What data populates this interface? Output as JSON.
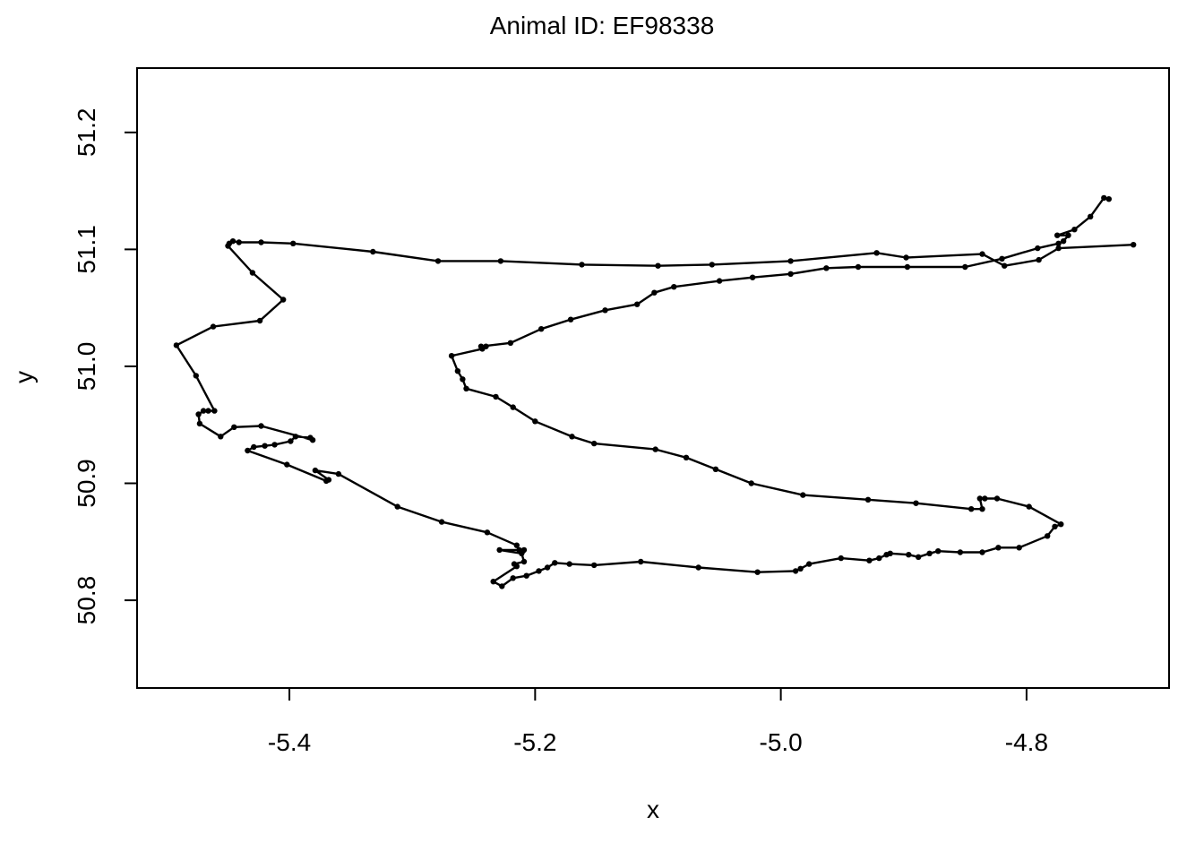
{
  "chart_data": {
    "type": "line",
    "title": "Animal ID: EF98338",
    "xlabel": "x",
    "ylabel": "y",
    "xlim": [
      -5.524,
      -4.684
    ],
    "ylim": [
      50.725,
      51.255
    ],
    "xticks": [
      -5.4,
      -5.2,
      -5.0,
      -4.8
    ],
    "xtick_labels": [
      "-5.4",
      "-5.2",
      "-5.0",
      "-4.8"
    ],
    "yticks": [
      50.8,
      50.9,
      51.0,
      51.1,
      51.2
    ],
    "ytick_labels": [
      "50.8",
      "50.9",
      "51.0",
      "51.1",
      "51.2"
    ],
    "grid": false,
    "legend": "none",
    "markers": true,
    "line_color": "#000000",
    "series": [
      {
        "x": [
          -4.713,
          -4.774,
          -4.79,
          -4.818,
          -4.836,
          -4.898,
          -4.922,
          -4.992,
          -5.056,
          -5.1,
          -5.162,
          -5.228,
          -5.279,
          -5.332,
          -5.397,
          -5.423,
          -5.441,
          -5.446,
          -5.449,
          -5.45,
          -5.43,
          -5.405,
          -5.424,
          -5.462,
          -5.492,
          -5.476,
          -5.461,
          -5.466,
          -5.47,
          -5.474,
          -5.473,
          -5.456,
          -5.445,
          -5.423,
          -5.381,
          -5.383,
          -5.395,
          -5.399,
          -5.412,
          -5.42,
          -5.429,
          -5.434,
          -5.402,
          -5.37,
          -5.368,
          -5.379,
          -5.36,
          -5.312,
          -5.276,
          -5.239,
          -5.215,
          -5.213,
          -5.21,
          -5.209,
          -5.229,
          -5.211,
          -5.209,
          -5.217,
          -5.215,
          -5.234,
          -5.227,
          -5.218,
          -5.207,
          -5.197,
          -5.19,
          -5.184,
          -5.172,
          -5.152,
          -5.114,
          -5.067,
          -5.019,
          -4.988,
          -4.984,
          -4.977,
          -4.951,
          -4.928,
          -4.92,
          -4.914,
          -4.911,
          -4.896,
          -4.888,
          -4.879,
          -4.872,
          -4.854,
          -4.836,
          -4.823,
          -4.806,
          -4.783,
          -4.777,
          -4.772,
          -4.798,
          -4.824,
          -4.834,
          -4.838,
          -4.836,
          -4.845,
          -4.89,
          -4.929,
          -4.982,
          -5.024,
          -5.053,
          -5.077,
          -5.102,
          -5.152,
          -5.17,
          -5.2,
          -5.218,
          -5.232,
          -5.256,
          -5.259,
          -5.263,
          -5.268,
          -5.243,
          -5.24,
          -5.244,
          -5.22,
          -5.195,
          -5.171,
          -5.143,
          -5.117,
          -5.103,
          -5.087,
          -5.05,
          -5.023,
          -4.992,
          -4.963,
          -4.937,
          -4.897,
          -4.85,
          -4.82,
          -4.791,
          -4.774,
          -4.77,
          -4.766,
          -4.775,
          -4.761,
          -4.748,
          -4.737,
          -4.733
        ],
        "y": [
          51.104,
          51.101,
          51.091,
          51.086,
          51.096,
          51.093,
          51.097,
          51.09,
          51.087,
          51.086,
          51.087,
          51.09,
          51.09,
          51.098,
          51.105,
          51.106,
          51.106,
          51.107,
          51.105,
          51.103,
          51.08,
          51.057,
          51.039,
          51.034,
          51.018,
          50.992,
          50.962,
          50.962,
          50.962,
          50.959,
          50.951,
          50.94,
          50.948,
          50.949,
          50.937,
          50.939,
          50.94,
          50.936,
          50.933,
          50.932,
          50.931,
          50.928,
          50.916,
          50.902,
          50.903,
          50.911,
          50.908,
          50.88,
          50.867,
          50.858,
          50.847,
          50.843,
          50.842,
          50.843,
          50.843,
          50.84,
          50.833,
          50.831,
          50.829,
          50.816,
          50.812,
          50.819,
          50.821,
          50.825,
          50.828,
          50.832,
          50.831,
          50.83,
          50.833,
          50.828,
          50.824,
          50.825,
          50.827,
          50.831,
          50.836,
          50.834,
          50.836,
          50.839,
          50.84,
          50.839,
          50.837,
          50.84,
          50.842,
          50.841,
          50.841,
          50.845,
          50.845,
          50.855,
          50.863,
          50.865,
          50.88,
          50.887,
          50.887,
          50.887,
          50.878,
          50.878,
          50.883,
          50.886,
          50.89,
          50.9,
          50.912,
          50.922,
          50.929,
          50.934,
          50.94,
          50.953,
          50.965,
          50.974,
          50.981,
          50.989,
          50.996,
          51.009,
          51.015,
          51.017,
          51.017,
          51.02,
          51.032,
          51.04,
          51.048,
          51.053,
          51.063,
          51.068,
          51.073,
          51.076,
          51.079,
          51.084,
          51.085,
          51.085,
          51.085,
          51.092,
          51.101,
          51.105,
          51.107,
          51.112,
          51.112,
          51.117,
          51.128,
          51.144,
          51.143
        ]
      }
    ]
  }
}
